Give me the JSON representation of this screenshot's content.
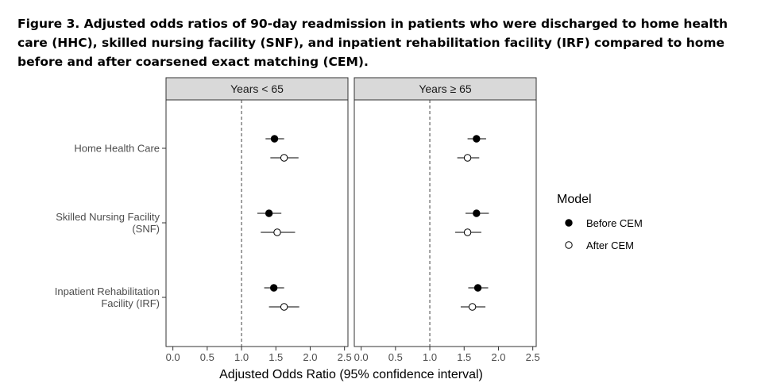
{
  "figure": {
    "title": "Figure 3. Adjusted odds ratios of 90-day readmission in patients who were discharged to home health care (HHC), skilled nursing facility (SNF), and inpatient rehabilitation facility (IRF) compared to home before and after coarsened exact matching (CEM)."
  },
  "chart_data": {
    "type": "scatter",
    "subtype": "forest-plot-faceted",
    "title": "Figure 3. Adjusted odds ratios of 90-day readmission in patients who were discharged to home health care (HHC), skilled nursing facility (SNF), and inpatient rehabilitation facility (IRF) compared to home before and after coarsened exact matching (CEM).",
    "xlabel": "Adjusted Odds Ratio (95% confidence interval)",
    "ylabel": "",
    "xlim": [
      -0.1,
      2.55
    ],
    "xticks": [
      0.0,
      0.5,
      1.0,
      1.5,
      2.0,
      2.5
    ],
    "xtick_labels": [
      "0.0",
      "0.5",
      "1.0",
      "1.5",
      "2.0",
      "2.5"
    ],
    "reference_line": 1.0,
    "categories": [
      [
        "Home Health Care"
      ],
      [
        "Skilled Nursing Facility",
        "(SNF)"
      ],
      [
        "Inpatient Rehabilitation",
        "Facility (IRF)"
      ]
    ],
    "legend": {
      "title": "Model",
      "position": "right",
      "entries": [
        {
          "label": "Before CEM",
          "marker": "filled-circle"
        },
        {
          "label": "After CEM",
          "marker": "open-circle"
        }
      ]
    },
    "grid": false,
    "facets": [
      {
        "label": "Years < 65",
        "series": [
          {
            "name": "Before CEM",
            "marker": "filled",
            "points": [
              {
                "est": 1.48,
                "lo": 1.35,
                "hi": 1.62
              },
              {
                "est": 1.4,
                "lo": 1.23,
                "hi": 1.58
              },
              {
                "est": 1.47,
                "lo": 1.33,
                "hi": 1.62
              }
            ]
          },
          {
            "name": "After CEM",
            "marker": "open",
            "points": [
              {
                "est": 1.62,
                "lo": 1.42,
                "hi": 1.83
              },
              {
                "est": 1.52,
                "lo": 1.28,
                "hi": 1.78
              },
              {
                "est": 1.62,
                "lo": 1.4,
                "hi": 1.84
              }
            ]
          }
        ]
      },
      {
        "label": "Years ≥ 65",
        "series": [
          {
            "name": "Before CEM",
            "marker": "filled",
            "points": [
              {
                "est": 1.68,
                "lo": 1.55,
                "hi": 1.82
              },
              {
                "est": 1.68,
                "lo": 1.52,
                "hi": 1.86
              },
              {
                "est": 1.7,
                "lo": 1.56,
                "hi": 1.85
              }
            ]
          },
          {
            "name": "After CEM",
            "marker": "open",
            "points": [
              {
                "est": 1.55,
                "lo": 1.4,
                "hi": 1.72
              },
              {
                "est": 1.55,
                "lo": 1.37,
                "hi": 1.75
              },
              {
                "est": 1.62,
                "lo": 1.45,
                "hi": 1.81
              }
            ]
          }
        ]
      }
    ]
  }
}
